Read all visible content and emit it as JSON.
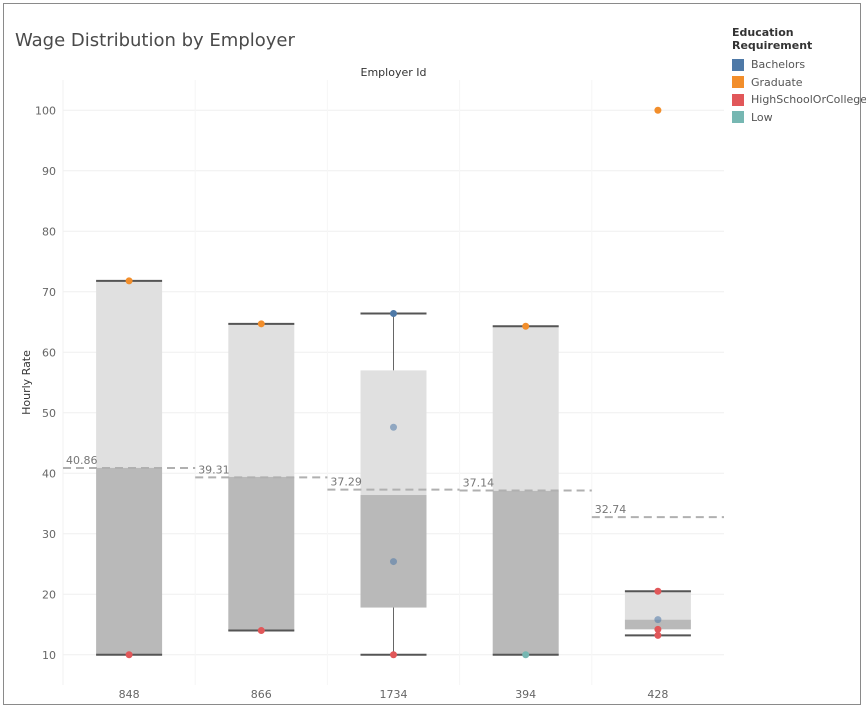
{
  "title": "Wage Distribution by Employer",
  "legend": {
    "title": "Education Requirement",
    "items": [
      {
        "label": "Bachelors",
        "color": "#4e79a7"
      },
      {
        "label": "Graduate",
        "color": "#f28e2b"
      },
      {
        "label": "HighSchoolOrCollege",
        "color": "#e15759"
      },
      {
        "label": "Low",
        "color": "#76b7b2"
      }
    ]
  },
  "chart_data": {
    "type": "boxplot",
    "title": "Wage Distribution by Employer",
    "column_header": "Employer Id",
    "ylabel": "Hourly Rate",
    "ylim": [
      5,
      105
    ],
    "yticks": [
      10,
      20,
      30,
      40,
      50,
      60,
      70,
      80,
      90,
      100
    ],
    "categories": [
      "848",
      "866",
      "1734",
      "394",
      "428"
    ],
    "grid": true,
    "legend_position": "top-right",
    "boxes": [
      {
        "category": "848",
        "min": 10.0,
        "q1": 10.0,
        "median": 40.9,
        "q3": 71.8,
        "max": 71.8
      },
      {
        "category": "866",
        "min": 14.0,
        "q1": 14.0,
        "median": 39.4,
        "q3": 64.7,
        "max": 64.7
      },
      {
        "category": "1734",
        "min": 10.0,
        "q1": 17.8,
        "median": 36.4,
        "q3": 57.0,
        "max": 66.4
      },
      {
        "category": "394",
        "min": 10.0,
        "q1": 10.0,
        "median": 37.1,
        "q3": 64.3,
        "max": 64.3
      },
      {
        "category": "428",
        "min": 13.2,
        "q1": 14.2,
        "median": 15.8,
        "q3": 20.5,
        "max": 20.5
      }
    ],
    "reference_lines": [
      {
        "category": "848",
        "value": 40.86,
        "label": "40.86"
      },
      {
        "category": "866",
        "value": 39.31,
        "label": "39.31"
      },
      {
        "category": "1734",
        "value": 37.29,
        "label": "37.29"
      },
      {
        "category": "394",
        "value": 37.14,
        "label": "37.14"
      },
      {
        "category": "428",
        "value": 32.74,
        "label": "32.74"
      }
    ],
    "points": [
      {
        "category": "848",
        "value": 71.8,
        "group": "Graduate"
      },
      {
        "category": "848",
        "value": 10.0,
        "group": "HighSchoolOrCollege"
      },
      {
        "category": "866",
        "value": 64.7,
        "group": "Graduate"
      },
      {
        "category": "866",
        "value": 14.0,
        "group": "HighSchoolOrCollege"
      },
      {
        "category": "1734",
        "value": 66.4,
        "group": "Bachelors"
      },
      {
        "category": "1734",
        "value": 47.6,
        "group": "Bachelors"
      },
      {
        "category": "1734",
        "value": 25.4,
        "group": "Bachelors"
      },
      {
        "category": "1734",
        "value": 10.0,
        "group": "HighSchoolOrCollege"
      },
      {
        "category": "394",
        "value": 64.3,
        "group": "Graduate"
      },
      {
        "category": "394",
        "value": 10.0,
        "group": "Low"
      },
      {
        "category": "428",
        "value": 100.0,
        "group": "Graduate"
      },
      {
        "category": "428",
        "value": 20.5,
        "group": "HighSchoolOrCollege"
      },
      {
        "category": "428",
        "value": 15.8,
        "group": "Bachelors"
      },
      {
        "category": "428",
        "value": 14.2,
        "group": "HighSchoolOrCollege"
      },
      {
        "category": "428",
        "value": 13.2,
        "group": "HighSchoolOrCollege"
      }
    ]
  }
}
